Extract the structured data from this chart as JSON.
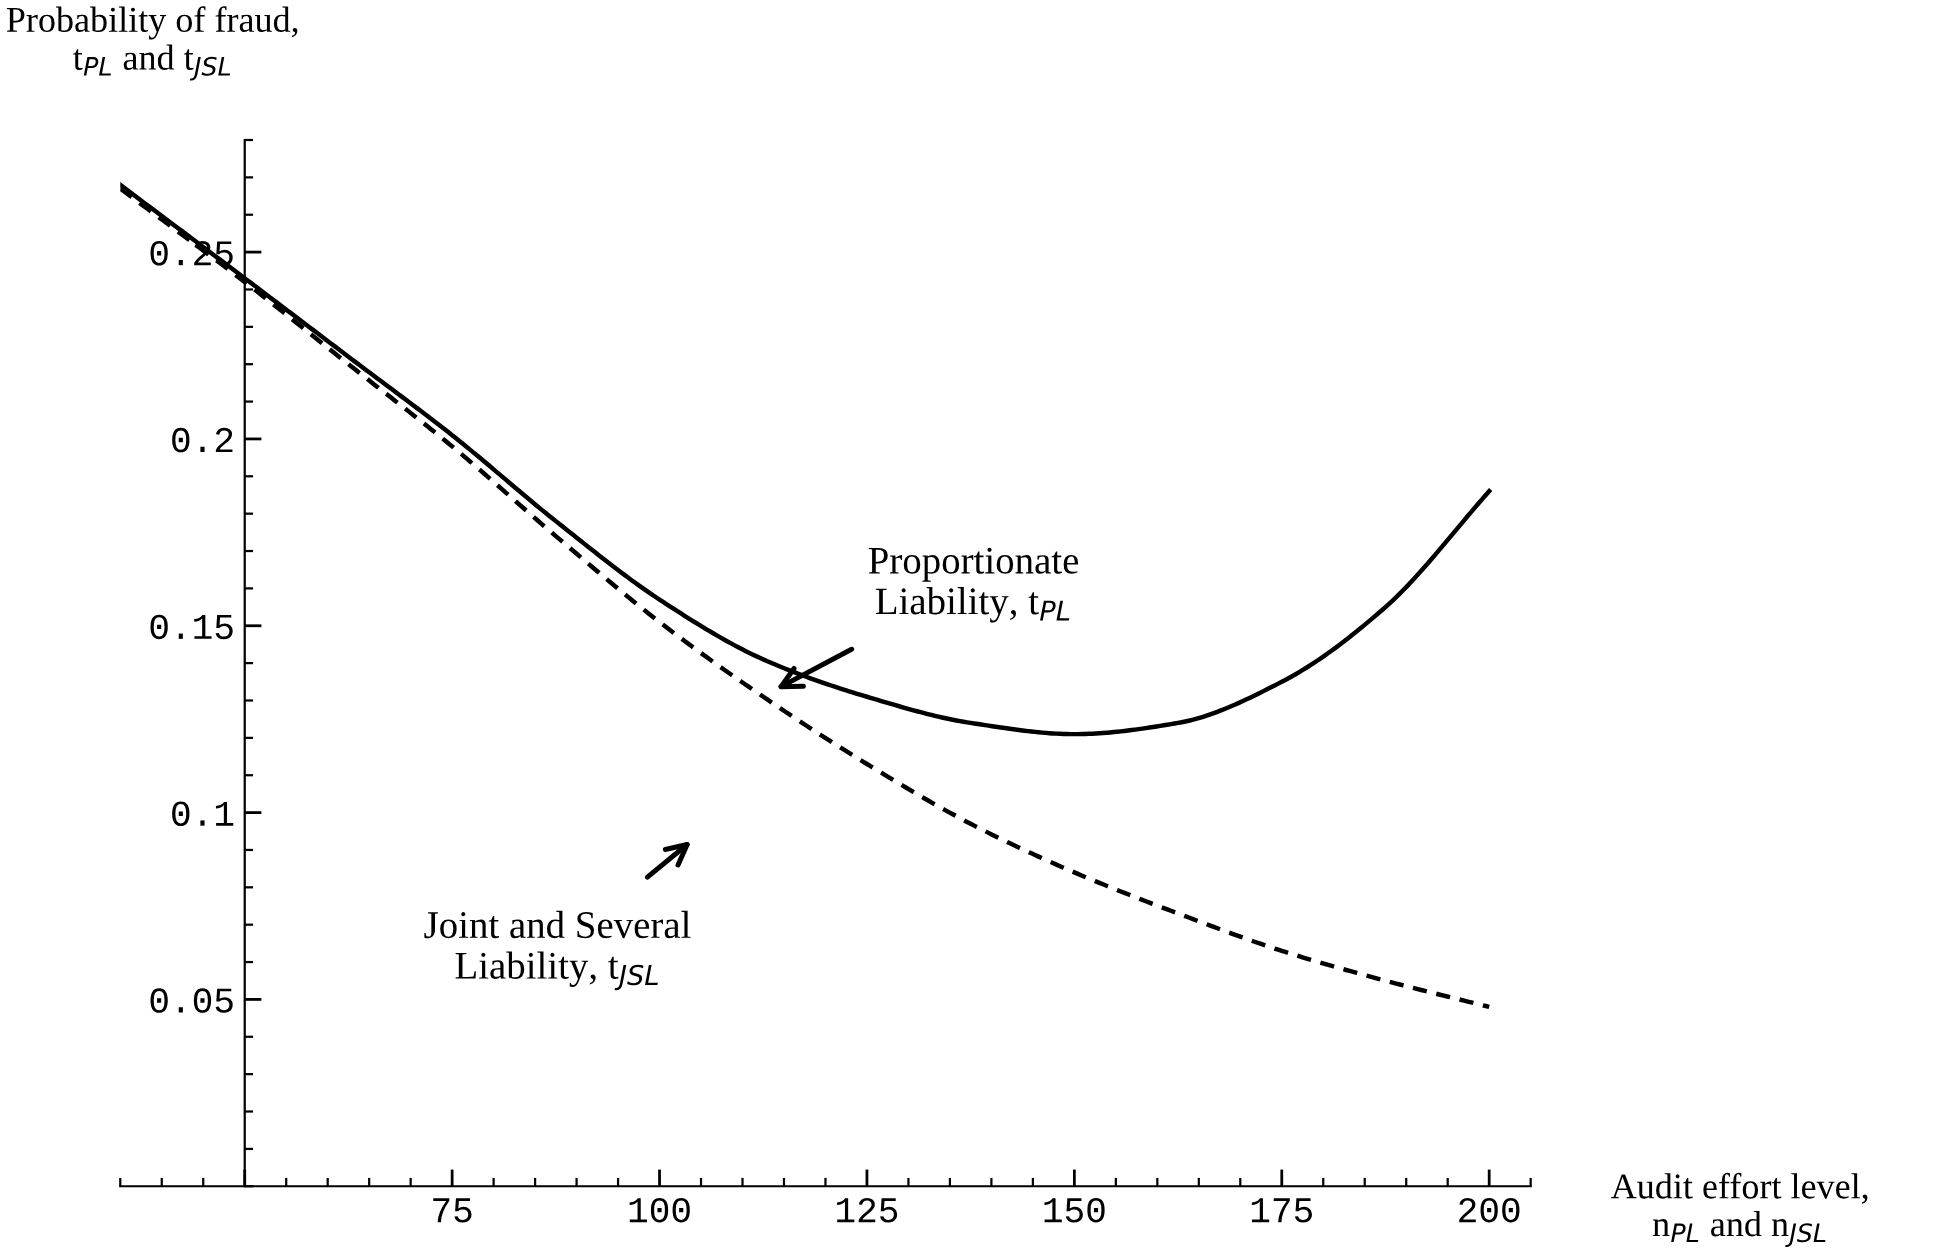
{
  "chart_data": {
    "type": "line",
    "xlabel": "Audit effort level,\nn$_{PL}$ and n$_{JSL}$",
    "ylabel": "Probability of fraud,\nt$_{PL}$ and t$_{JSL}$",
    "x": [
      35,
      50,
      62.5,
      75,
      87.5,
      100,
      112.5,
      125,
      137.5,
      150,
      162.5,
      175,
      187.5,
      200
    ],
    "series": [
      {
        "color": "#000000",
        "line_style": "solid",
        "values": [
          0.268,
          0.243,
          0.222,
          0.201,
          0.178,
          0.157,
          0.141,
          0.131,
          0.124,
          0.121,
          0.124,
          0.135,
          0.155,
          0.186
        ]
      },
      {
        "color": "#000000",
        "line_style": "dashed",
        "values": [
          0.267,
          0.242,
          0.22,
          0.198,
          0.174,
          0.151,
          0.131,
          0.113,
          0.097,
          0.084,
          0.073,
          0.063,
          0.055,
          0.048
        ]
      }
    ],
    "annotations": [
      "Proportionate\nLiability, t$_{PL}$",
      "Joint and Several\nLiability, t$_{JSL}$"
    ],
    "xlim": [
      35,
      205
    ],
    "ylim": [
      0,
      0.28
    ],
    "xticks": [
      {
        "value": 50,
        "label": null
      },
      75,
      100,
      125,
      150,
      175,
      200
    ],
    "yticks": [
      0.05,
      0.1,
      0.15,
      0.2,
      0.25
    ],
    "grid": false,
    "legend": false,
    "marker": "none"
  }
}
